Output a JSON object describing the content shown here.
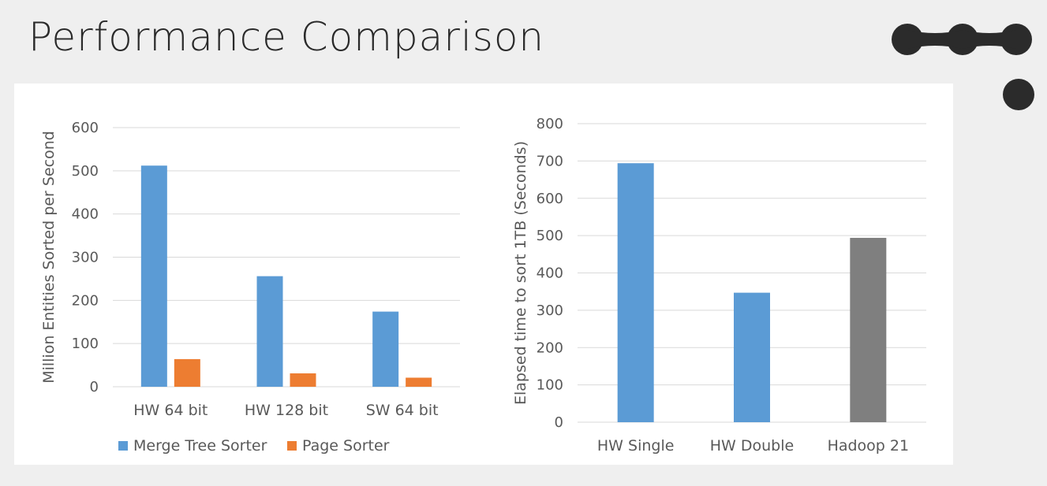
{
  "page": {
    "title": "Performance Comparison"
  },
  "colors": {
    "background": "#efefef",
    "panel": "#ffffff",
    "title": "#2a2a2a",
    "decoration": "#2b2b2b",
    "blue": "#5b9bd5",
    "orange": "#ed7d31",
    "gray": "#7f7f7f",
    "gridline": "#d9d9d9",
    "axis_text": "#595959"
  },
  "chart_data": [
    {
      "type": "bar",
      "title": "",
      "xlabel": "",
      "ylabel": "Million Entities Sorted per Second",
      "ylim": [
        0,
        600
      ],
      "yticks": [
        0,
        100,
        200,
        300,
        400,
        500,
        600
      ],
      "grid": true,
      "legend": "bottom",
      "categories": [
        "HW 64 bit",
        "HW 128 bit",
        "SW 64 bit"
      ],
      "series": [
        {
          "name": "Merge Tree Sorter",
          "color": "#5b9bd5",
          "values": [
            512,
            256,
            174
          ]
        },
        {
          "name": "Page Sorter",
          "color": "#ed7d31",
          "values": [
            64,
            31,
            21
          ]
        }
      ]
    },
    {
      "type": "bar",
      "title": "",
      "xlabel": "",
      "ylabel": "Elapsed time to sort 1TB (Seconds)",
      "ylim": [
        0,
        800
      ],
      "yticks": [
        0,
        100,
        200,
        300,
        400,
        500,
        600,
        700,
        800
      ],
      "grid": true,
      "legend": "none",
      "categories": [
        "HW Single",
        "HW Double",
        "Hadoop 21"
      ],
      "values": [
        694,
        347,
        494
      ],
      "bar_colors": [
        "#5b9bd5",
        "#5b9bd5",
        "#7f7f7f"
      ]
    }
  ]
}
